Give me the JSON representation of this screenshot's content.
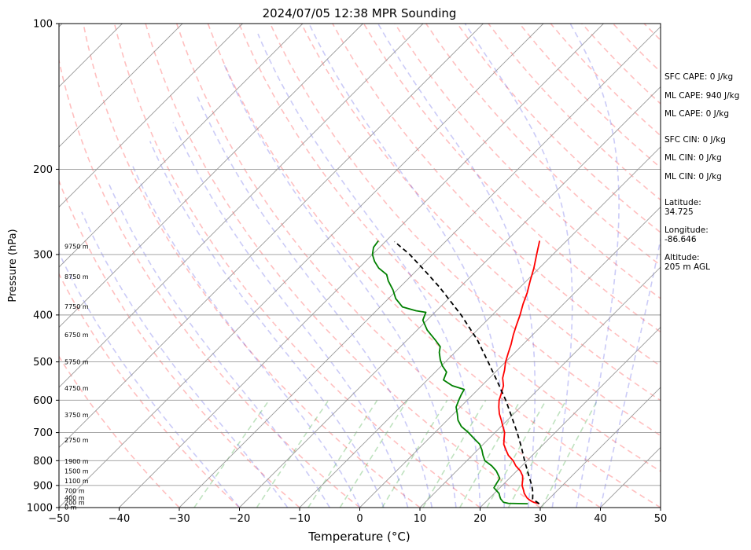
{
  "chart_data": {
    "type": "line",
    "title": "2024/07/05 12:38 MPR Sounding",
    "xlabel": "Temperature (°C)",
    "ylabel": "Pressure (hPa)",
    "xlim": [
      -50,
      50
    ],
    "ylim": [
      1000,
      100
    ],
    "y_scale": "log",
    "grid": true,
    "x_ticks": [
      -50,
      -40,
      -30,
      -20,
      -10,
      0,
      10,
      20,
      30,
      40,
      50
    ],
    "y_ticks": [
      1000,
      900,
      800,
      700,
      600,
      500,
      400,
      300,
      200,
      100
    ],
    "height_labels": [
      {
        "label": "0 m",
        "p": 1000
      },
      {
        "label": "200 m",
        "p": 978
      },
      {
        "label": "400 m",
        "p": 957
      },
      {
        "label": "700 m",
        "p": 924
      },
      {
        "label": "1100 m",
        "p": 882
      },
      {
        "label": "1500 m",
        "p": 842
      },
      {
        "label": "1900 m",
        "p": 804
      },
      {
        "label": "2750 m",
        "p": 727
      },
      {
        "label": "3750 m",
        "p": 645
      },
      {
        "label": "4750 m",
        "p": 568
      },
      {
        "label": "5750 m",
        "p": 501
      },
      {
        "label": "6750 m",
        "p": 440
      },
      {
        "label": "7750 m",
        "p": 385
      },
      {
        "label": "8750 m",
        "p": 334
      },
      {
        "label": "9750 m",
        "p": 289
      }
    ],
    "series": [
      {
        "role": "temperature",
        "color": "#ff0000",
        "points": [
          [
            29.2,
            982
          ],
          [
            28.0,
            975
          ],
          [
            27.0,
            965
          ],
          [
            26.2,
            955
          ],
          [
            25.0,
            935
          ],
          [
            24.3,
            920
          ],
          [
            23.3,
            900
          ],
          [
            22.6,
            880
          ],
          [
            21.8,
            860
          ],
          [
            20.6,
            840
          ],
          [
            19.0,
            820
          ],
          [
            17.7,
            800
          ],
          [
            16.0,
            780
          ],
          [
            14.7,
            760
          ],
          [
            13.4,
            740
          ],
          [
            12.5,
            720
          ],
          [
            11.6,
            700
          ],
          [
            10.3,
            680
          ],
          [
            9.0,
            660
          ],
          [
            7.6,
            640
          ],
          [
            6.4,
            620
          ],
          [
            5.3,
            600
          ],
          [
            4.5,
            580
          ],
          [
            3.6,
            560
          ],
          [
            2.2,
            540
          ],
          [
            1.2,
            520
          ],
          [
            0.0,
            500
          ],
          [
            -1.0,
            480
          ],
          [
            -2.0,
            460
          ],
          [
            -3.2,
            440
          ],
          [
            -4.3,
            420
          ],
          [
            -5.4,
            400
          ],
          [
            -6.7,
            380
          ],
          [
            -7.9,
            360
          ],
          [
            -9.4,
            340
          ],
          [
            -10.9,
            320
          ],
          [
            -12.7,
            300
          ],
          [
            -14.5,
            281
          ]
        ]
      },
      {
        "role": "dewpoint",
        "color": "#008000",
        "points": [
          [
            27.3,
            982
          ],
          [
            24.0,
            980
          ],
          [
            23.0,
            975
          ],
          [
            22.0,
            960
          ],
          [
            21.5,
            950
          ],
          [
            20.8,
            935
          ],
          [
            19.0,
            910
          ],
          [
            18.7,
            890
          ],
          [
            18.4,
            870
          ],
          [
            17.2,
            850
          ],
          [
            16.6,
            840
          ],
          [
            15.0,
            820
          ],
          [
            13.0,
            800
          ],
          [
            11.8,
            780
          ],
          [
            10.7,
            760
          ],
          [
            9.4,
            740
          ],
          [
            7.5,
            720
          ],
          [
            5.6,
            700
          ],
          [
            3.4,
            680
          ],
          [
            1.8,
            660
          ],
          [
            0.6,
            640
          ],
          [
            -0.7,
            620
          ],
          [
            -1.4,
            600
          ],
          [
            -1.9,
            585
          ],
          [
            -2.3,
            570
          ],
          [
            -4.9,
            560
          ],
          [
            -7.3,
            545
          ],
          [
            -8.1,
            525
          ],
          [
            -9.8,
            510
          ],
          [
            -11.2,
            495
          ],
          [
            -12.6,
            478
          ],
          [
            -13.4,
            465
          ],
          [
            -15.4,
            450
          ],
          [
            -18.3,
            430
          ],
          [
            -20.7,
            410
          ],
          [
            -21.5,
            395
          ],
          [
            -23.4,
            392
          ],
          [
            -26.3,
            385
          ],
          [
            -28.8,
            370
          ],
          [
            -30.7,
            355
          ],
          [
            -33.0,
            340
          ],
          [
            -34.3,
            330
          ],
          [
            -36.7,
            320
          ],
          [
            -38.5,
            310
          ],
          [
            -40.0,
            300
          ],
          [
            -41.0,
            290
          ],
          [
            -41.3,
            281
          ]
        ]
      },
      {
        "role": "parcel",
        "color": "#000000",
        "dashed": true,
        "points": [
          [
            29.2,
            982
          ],
          [
            27.3,
            960
          ],
          [
            26.6,
            940
          ],
          [
            25.8,
            920
          ],
          [
            24.9,
            900
          ],
          [
            22.3,
            850
          ],
          [
            19.6,
            800
          ],
          [
            16.8,
            750
          ],
          [
            13.7,
            700
          ],
          [
            10.2,
            650
          ],
          [
            6.4,
            600
          ],
          [
            2.0,
            550
          ],
          [
            -2.9,
            500
          ],
          [
            -8.4,
            450
          ],
          [
            -15.2,
            400
          ],
          [
            -19.2,
            375
          ],
          [
            -23.5,
            350
          ],
          [
            -28.4,
            325
          ],
          [
            -33.8,
            300
          ],
          [
            -38.5,
            282
          ]
        ]
      }
    ],
    "annotations": {
      "sfc_cape": "SFC CAPE: 0 J/kg",
      "ml_cape_1": "ML CAPE: 940 J/kg",
      "ml_cape_2": "ML CAPE: 0 J/kg",
      "sfc_cin": "SFC CIN: 0 J/kg",
      "ml_cin_1": "ML CIN: 0 J/kg",
      "ml_cin_2": "ML CIN: 0 J/kg",
      "latitude": "Latitude:\n34.725",
      "longitude": "Longitude:\n-86.646",
      "altitude": "Altitude:\n205 m AGL"
    }
  }
}
